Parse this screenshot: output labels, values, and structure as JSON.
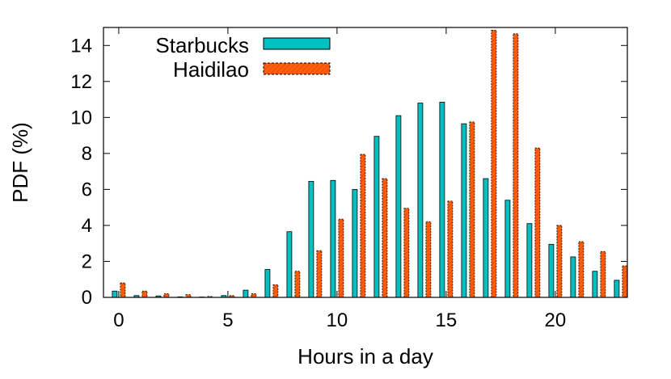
{
  "chart_data": {
    "type": "bar",
    "title": "",
    "xlabel": "Hours in a day",
    "ylabel": "PDF (%)",
    "xlim": [
      -0.7,
      23.3
    ],
    "ylim": [
      0,
      15
    ],
    "xticks": [
      0,
      5,
      10,
      15,
      20
    ],
    "yticks": [
      0,
      2,
      4,
      6,
      8,
      10,
      12,
      14
    ],
    "grid": false,
    "legend_position": "top-left",
    "categories": [
      0,
      1,
      2,
      3,
      4,
      5,
      6,
      7,
      8,
      9,
      10,
      11,
      12,
      13,
      14,
      15,
      16,
      17,
      18,
      19,
      20,
      21,
      22,
      23
    ],
    "series": [
      {
        "name": "Starbucks",
        "color": "#00c0c0",
        "pattern": "solid",
        "values": [
          0.35,
          0.1,
          0.08,
          0.03,
          0.02,
          0.1,
          0.4,
          1.55,
          3.65,
          6.45,
          6.5,
          6.0,
          8.95,
          10.1,
          10.8,
          10.85,
          9.65,
          6.6,
          5.4,
          4.1,
          2.95,
          2.25,
          1.45,
          0.95
        ]
      },
      {
        "name": "Haidilao",
        "color": "#ff6010",
        "pattern": "dashed",
        "values": [
          0.8,
          0.35,
          0.2,
          0.15,
          0.05,
          0.1,
          0.2,
          0.7,
          1.45,
          2.6,
          4.35,
          7.95,
          6.6,
          4.95,
          4.2,
          5.35,
          9.75,
          14.85,
          14.65,
          8.3,
          4.0,
          3.1,
          2.55,
          1.75
        ]
      }
    ]
  }
}
